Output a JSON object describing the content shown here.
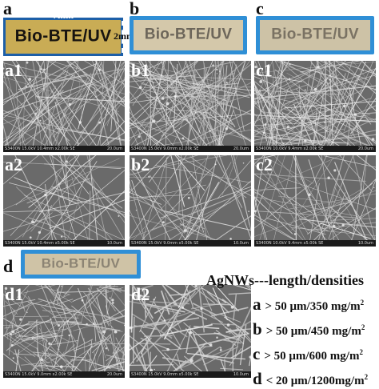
{
  "panels": {
    "a": "a",
    "b": "b",
    "c": "c",
    "d": "d",
    "a1": "a1",
    "b1": "b1",
    "c1": "c1",
    "a2": "a2",
    "b2": "b2",
    "c2": "c2",
    "d1": "d1",
    "d2": "d2"
  },
  "sample_label": "Bio-BTE/UV",
  "dimensions": {
    "width": "7mm",
    "height": "2mm"
  },
  "sem_captions": {
    "a1": {
      "info": "S3400N 15.0kV 10.4mm x2.00k SE",
      "scale": "20.0um"
    },
    "b1": {
      "info": "S3400N 15.0kV 9.0mm x2.00k SE",
      "scale": "20.0um"
    },
    "c1": {
      "info": "S3400N 10.0kV 9.4mm x2.00k SE",
      "scale": "20.0um"
    },
    "a2": {
      "info": "S3400N 15.0kV 10.4mm x5.00k SE",
      "scale": "10.0um"
    },
    "b2": {
      "info": "S3400N 15.0kV 9.0mm x5.00k SE",
      "scale": "10.0um"
    },
    "c2": {
      "info": "S3400N 10.0kV 9.4mm x5.00k SE",
      "scale": "10.0um"
    },
    "d1": {
      "info": "S3400N 15.0kV 9.0mm x2.00k SE",
      "scale": "20.0um"
    },
    "d2": {
      "info": "S3400N 15.0kV 9.0mm x5.00k SE",
      "scale": "10.0um"
    }
  },
  "legend": {
    "title": "AgNWs---length/densities",
    "rows": [
      {
        "key": "a",
        "text": "> 50 μm/350 mg/m",
        "sup": "2"
      },
      {
        "key": "b",
        "text": "> 50 μm/450 mg/m",
        "sup": "2"
      },
      {
        "key": "c",
        "text": "> 50 μm/600 mg/m",
        "sup": "2"
      },
      {
        "key": "d",
        "text": "< 20 μm/1200mg/m",
        "sup": "2"
      }
    ]
  },
  "colors": {
    "frame_blue": "#2f8fd6",
    "film_a": "#c9ac55",
    "film_b": "#d4c8aa",
    "film_c": "#cdc2a6",
    "film_d": "#cfc3a6",
    "sem_gray": "#676767"
  }
}
